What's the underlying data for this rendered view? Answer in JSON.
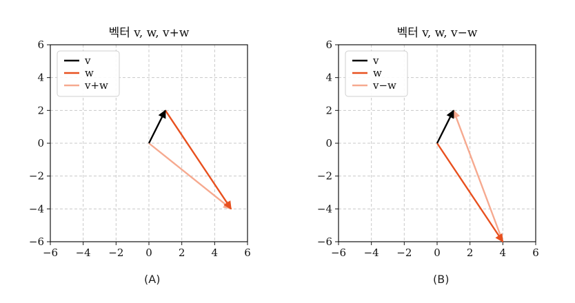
{
  "chart_data": [
    {
      "type": "line",
      "title": "벡터 v, w, v+w",
      "caption": "(A)",
      "xlim": [
        -6,
        6
      ],
      "ylim": [
        -6,
        6
      ],
      "xticks": [
        -6,
        -4,
        -2,
        0,
        2,
        4,
        6
      ],
      "yticks": [
        -6,
        -4,
        -2,
        0,
        2,
        4,
        6
      ],
      "x_tick_labels": [
        "−6",
        "−4",
        "−2",
        "0",
        "2",
        "4",
        "6"
      ],
      "y_tick_labels": [
        "−6",
        "−4",
        "−2",
        "0",
        "2",
        "4",
        "6"
      ],
      "grid": true,
      "legend_position": "top-left",
      "series": [
        {
          "name": "v",
          "color": "#000000",
          "from": [
            0,
            0
          ],
          "to": [
            1,
            2
          ]
        },
        {
          "name": "w",
          "color": "#e8501e",
          "from": [
            1,
            2
          ],
          "to": [
            5,
            -4
          ]
        },
        {
          "name": "v+w",
          "color": "#f6a98f",
          "from": [
            0,
            0
          ],
          "to": [
            5,
            -4
          ]
        }
      ]
    },
    {
      "type": "line",
      "title": "벡터 v, w, v−w",
      "caption": "(B)",
      "xlim": [
        -6,
        6
      ],
      "ylim": [
        -6,
        6
      ],
      "xticks": [
        -6,
        -4,
        -2,
        0,
        2,
        4,
        6
      ],
      "yticks": [
        -6,
        -4,
        -2,
        0,
        2,
        4,
        6
      ],
      "x_tick_labels": [
        "−6",
        "−4",
        "−2",
        "0",
        "2",
        "4",
        "6"
      ],
      "y_tick_labels": [
        "−6",
        "−4",
        "−2",
        "0",
        "2",
        "4",
        "6"
      ],
      "grid": true,
      "legend_position": "top-left",
      "series": [
        {
          "name": "v",
          "color": "#000000",
          "from": [
            0,
            0
          ],
          "to": [
            1,
            2
          ]
        },
        {
          "name": "w",
          "color": "#e8501e",
          "from": [
            0,
            0
          ],
          "to": [
            4,
            -6
          ]
        },
        {
          "name": "v−w",
          "color": "#f6a98f",
          "from": [
            4,
            -6
          ],
          "to": [
            1,
            2
          ]
        }
      ]
    }
  ]
}
